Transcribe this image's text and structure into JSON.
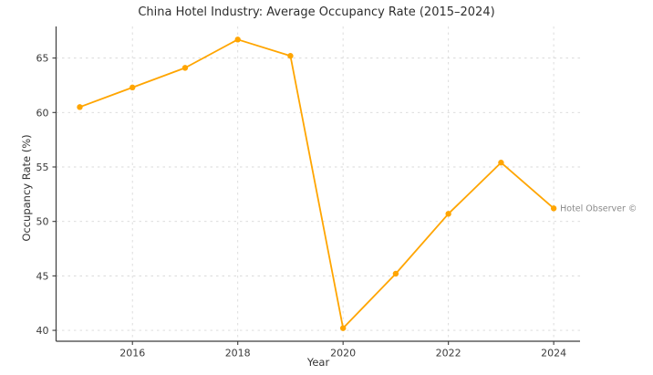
{
  "chart_data": {
    "type": "line",
    "title": "China Hotel Industry: Average Occupancy Rate (2015–2024)",
    "xlabel": "Year",
    "ylabel": "Occupancy Rate (%)",
    "x": [
      2015,
      2016,
      2017,
      2018,
      2019,
      2020,
      2021,
      2022,
      2023,
      2024
    ],
    "series": [
      {
        "name": "Average Occupancy Rate",
        "values": [
          60.5,
          62.3,
          64.1,
          66.7,
          65.2,
          40.2,
          45.2,
          50.7,
          55.4,
          51.2
        ],
        "color": "#FFA500",
        "marker": "circle"
      }
    ],
    "xlim": [
      2014.55,
      2024.5
    ],
    "ylim": [
      39.0,
      67.9
    ],
    "xticks": [
      2016,
      2018,
      2020,
      2022,
      2024
    ],
    "yticks": [
      40,
      45,
      50,
      55,
      60,
      65
    ],
    "grid": true,
    "grid_style": "dashed",
    "grid_color": "#d9d9d9",
    "spine_color": "#3c3c3c",
    "tick_label_color": "#3a3a3a",
    "legend": "none",
    "annotation": {
      "text": "Hotel Observer ©",
      "x": 2024,
      "y": 51.2,
      "color": "#8a8a8a"
    }
  }
}
